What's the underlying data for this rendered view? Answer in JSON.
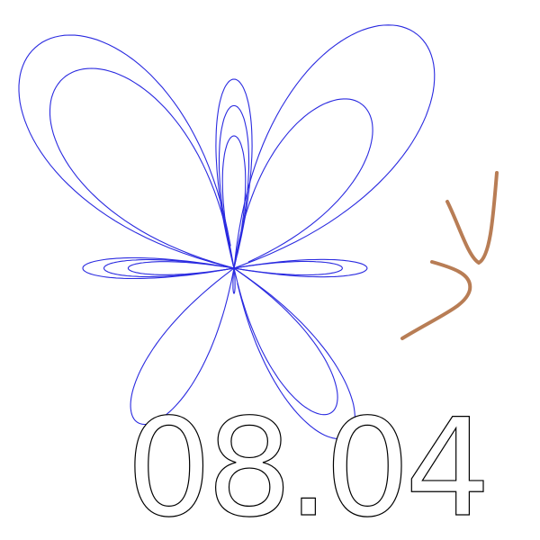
{
  "handwriting": "08.04"
}
